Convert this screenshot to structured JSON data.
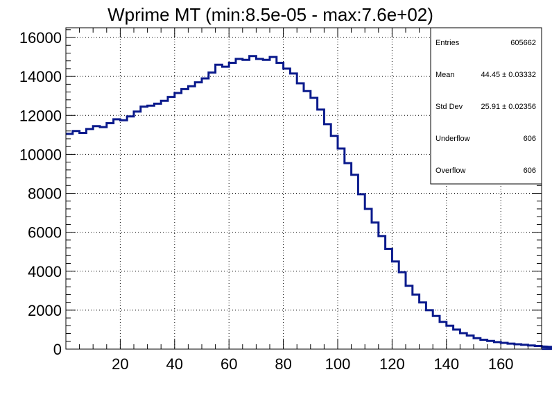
{
  "chart_data": {
    "type": "histogram-step",
    "title": "Wprime MT (min:8.5e-05 - max:7.6e+02)",
    "xlabel": "",
    "ylabel": "",
    "xlim": [
      0,
      175
    ],
    "ylim": [
      0,
      16500
    ],
    "grid": true,
    "line_color": "#0a1a8c",
    "bin_width": 2.5,
    "x_ticks": [
      20,
      40,
      60,
      80,
      100,
      120,
      140,
      160
    ],
    "y_ticks": [
      0,
      2000,
      4000,
      6000,
      8000,
      10000,
      12000,
      14000,
      16000
    ],
    "series": [
      {
        "values": [
          11050,
          11200,
          11100,
          11300,
          11450,
          11400,
          11600,
          11800,
          11750,
          11950,
          12200,
          12450,
          12500,
          12600,
          12750,
          12950,
          13150,
          13350,
          13500,
          13700,
          13900,
          14200,
          14600,
          14500,
          14700,
          14900,
          14850,
          15050,
          14900,
          14850,
          15000,
          14700,
          14400,
          14150,
          13650,
          13250,
          12900,
          12300,
          11550,
          10950,
          10300,
          9550,
          8950,
          7950,
          7200,
          6500,
          5800,
          5150,
          4500,
          3950,
          3250,
          2800,
          2400,
          2000,
          1700,
          1400,
          1200,
          1000,
          820,
          700,
          560,
          480,
          420,
          360,
          320,
          280,
          250,
          220,
          190,
          160,
          140,
          125,
          115,
          100,
          90,
          80,
          75,
          70,
          65,
          55,
          50,
          45,
          40,
          35,
          30,
          25,
          22,
          20,
          18,
          15
        ]
      }
    ],
    "stats_box": {
      "rows": [
        {
          "label": "Entries",
          "value": "605662"
        },
        {
          "label": "Mean",
          "value": "44.45 ± 0.03332"
        },
        {
          "label": "Std Dev",
          "value": "25.91 ± 0.02356"
        },
        {
          "label": "Underflow",
          "value": "606"
        },
        {
          "label": "Overflow",
          "value": "606"
        }
      ]
    }
  }
}
